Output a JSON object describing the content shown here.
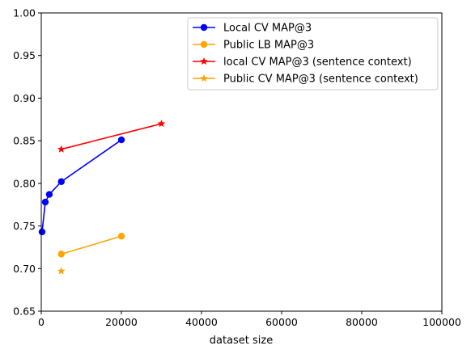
{
  "chart_data": {
    "type": "line",
    "xlabel": "dataset size",
    "ylabel": "",
    "title": "",
    "xlim": [
      0,
      100000
    ],
    "ylim": [
      0.65,
      1.0
    ],
    "xticks": [
      0,
      20000,
      40000,
      60000,
      80000,
      100000
    ],
    "yticks": [
      0.65,
      0.7,
      0.75,
      0.8,
      0.85,
      0.9,
      0.95,
      1.0
    ],
    "xtick_labels": [
      "0",
      "20000",
      "40000",
      "60000",
      "80000",
      "100000"
    ],
    "ytick_labels": [
      "0.65",
      "0.70",
      "0.75",
      "0.80",
      "0.85",
      "0.90",
      "0.95",
      "1.00"
    ],
    "grid": false,
    "legend_position": "top-right",
    "series": [
      {
        "name": "Local CV MAP@3",
        "color": "#0000ff",
        "marker": "circle",
        "x": [
          200,
          1000,
          2000,
          5000,
          20000
        ],
        "y": [
          0.743,
          0.778,
          0.787,
          0.802,
          0.851
        ]
      },
      {
        "name": "Public LB MAP@3",
        "color": "#ffa500",
        "marker": "circle",
        "x": [
          5000,
          20000
        ],
        "y": [
          0.717,
          0.738
        ]
      },
      {
        "name": "local CV MAP@3 (sentence context)",
        "color": "#ff0000",
        "marker": "star",
        "x": [
          5000,
          30000
        ],
        "y": [
          0.84,
          0.87
        ]
      },
      {
        "name": "Public CV MAP@3 (sentence context)",
        "color": "#ffa500",
        "marker": "star",
        "x": [
          5000
        ],
        "y": [
          0.697
        ]
      }
    ]
  }
}
